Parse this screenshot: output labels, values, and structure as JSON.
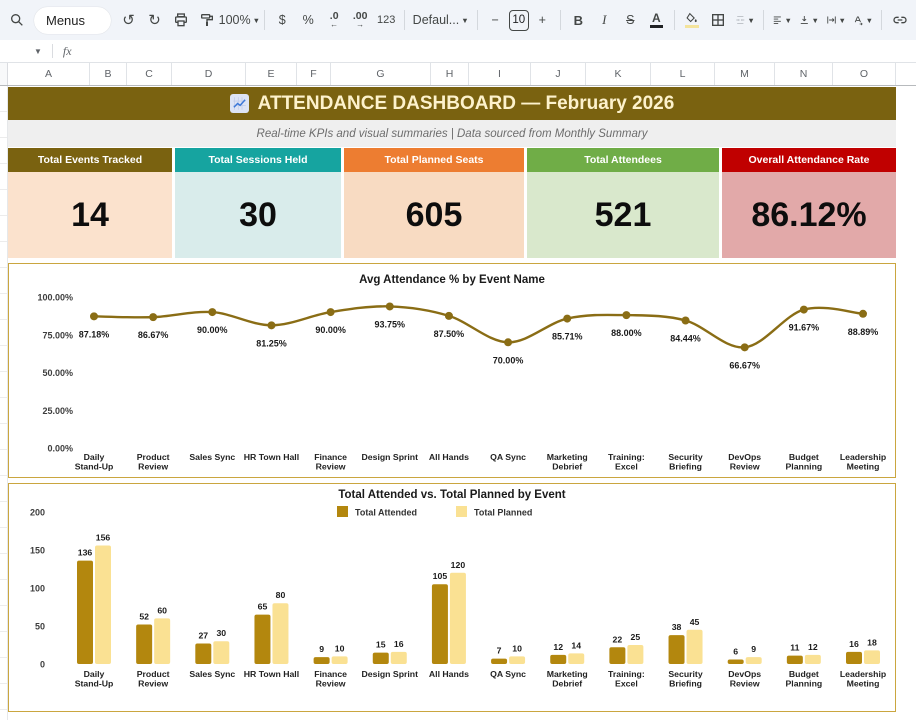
{
  "toolbar": {
    "menus_label": "Menus",
    "zoom_value": "100%",
    "currency_label": "$",
    "percent_label": "%",
    "decrease_decimal_label": ".0",
    "decrease_decimal_arrow": "←",
    "increase_decimal_label": ".00",
    "increase_decimal_arrow": "→",
    "number_format_label": "123",
    "style_name": "Defaul...",
    "font_size_decrease": "−",
    "font_size": "10",
    "font_size_increase": "+",
    "bold_label": "B",
    "italic_label": "I",
    "strikethrough_label": "S",
    "text_color_label": "A"
  },
  "formula_bar": {
    "fx_label": "fx"
  },
  "grid": {
    "columns": [
      "A",
      "B",
      "C",
      "D",
      "E",
      "F",
      "G",
      "H",
      "I",
      "J",
      "K",
      "L",
      "M",
      "N",
      "O"
    ]
  },
  "dashboard": {
    "title": "ATTENDANCE DASHBOARD — February 2026",
    "subtitle": "Real-time KPIs and visual summaries | Data sourced from Monthly Summary",
    "title_bg": "#7a6210",
    "kpis": [
      {
        "label": "Total Events Tracked",
        "value": "14",
        "header_color": "#7a6210",
        "body_color": "#fbe2cd"
      },
      {
        "label": "Total Sessions Held",
        "value": "30",
        "header_color": "#16a4a0",
        "body_color": "#d9eceb"
      },
      {
        "label": "Total Planned Seats",
        "value": "605",
        "header_color": "#ed7d31",
        "body_color": "#f8dbc2"
      },
      {
        "label": "Total Attendees",
        "value": "521",
        "header_color": "#70ad47",
        "body_color": "#d9e8cc"
      },
      {
        "label": "Overall Attendance Rate",
        "value": "86.12%",
        "header_color": "#c00000",
        "body_color": "#e2a9a9"
      }
    ]
  },
  "chart_data": [
    {
      "type": "line",
      "title": "Avg Attendance % by Event Name",
      "categories": [
        "Daily\nStand-Up",
        "Product\nReview",
        "Sales Sync",
        "HR Town Hall",
        "Finance\nReview",
        "Design Sprint",
        "All Hands",
        "QA Sync",
        "Marketing\nDebrief",
        "Training:\nExcel",
        "Security\nBriefing",
        "DevOps\nReview",
        "Budget\nPlanning",
        "Leadership\nMeeting"
      ],
      "values": [
        87.18,
        86.67,
        90.0,
        81.25,
        90.0,
        93.75,
        87.5,
        70.0,
        85.71,
        88.0,
        84.44,
        66.67,
        91.67,
        88.89
      ],
      "labels": [
        "87.18%",
        "86.67%",
        "90.00%",
        "81.25%",
        "90.00%",
        "93.75%",
        "87.50%",
        "70.00%",
        "85.71%",
        "88.00%",
        "84.44%",
        "66.67%",
        "91.67%",
        "88.89%"
      ],
      "ylabel_ticks": [
        "100.00%",
        "75.00%",
        "50.00%",
        "25.00%",
        "0.00%"
      ],
      "ylim": [
        0,
        100
      ],
      "grid": false,
      "legend": "none",
      "line_color": "#8a6d15"
    },
    {
      "type": "bar",
      "title": "Total Attended vs. Total Planned by Event",
      "categories": [
        "Daily\nStand-Up",
        "Product\nReview",
        "Sales Sync",
        "HR Town Hall",
        "Finance\nReview",
        "Design Sprint",
        "All Hands",
        "QA Sync",
        "Marketing\nDebrief",
        "Training:\nExcel",
        "Security\nBriefing",
        "DevOps\nReview",
        "Budget\nPlanning",
        "Leadership\nMeeting"
      ],
      "series": [
        {
          "name": "Total Attended",
          "color": "#b3870e",
          "values": [
            136,
            52,
            27,
            65,
            9,
            15,
            105,
            7,
            12,
            22,
            38,
            6,
            11,
            16
          ]
        },
        {
          "name": "Total Planned",
          "color": "#fae193",
          "values": [
            156,
            60,
            30,
            80,
            10,
            16,
            120,
            10,
            14,
            25,
            45,
            9,
            12,
            18
          ]
        }
      ],
      "yticks": [
        0,
        50,
        100,
        150,
        200
      ],
      "ylim": [
        0,
        200
      ],
      "grid": false,
      "legend_position": "top"
    }
  ]
}
